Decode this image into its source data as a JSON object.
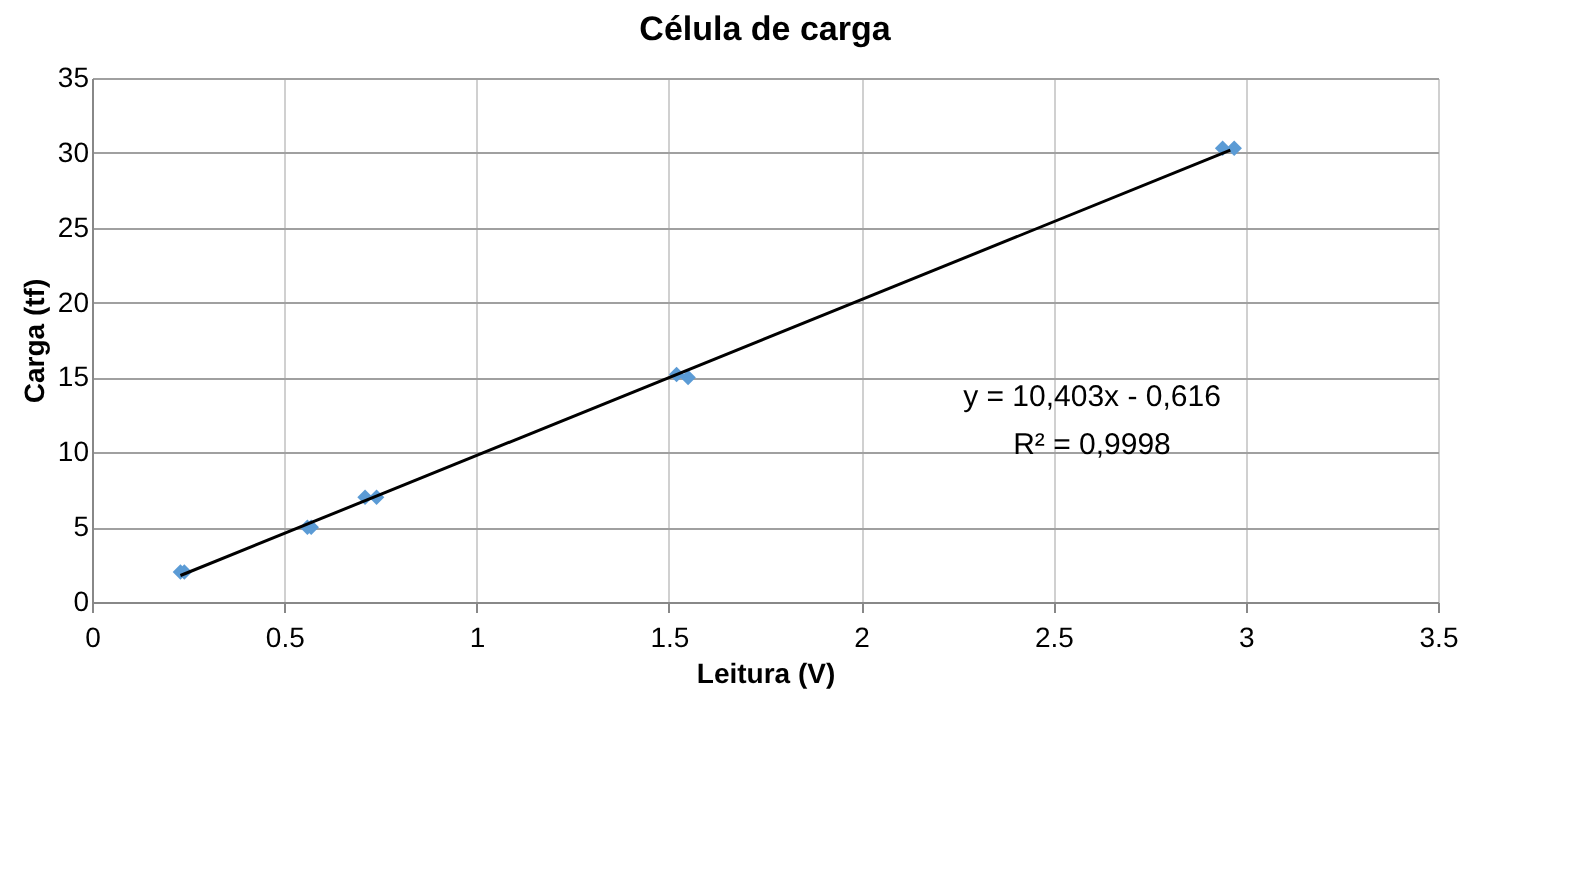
{
  "chart_data": {
    "type": "scatter",
    "title": "Célula de carga",
    "xlabel": "Leitura (V)",
    "ylabel": "Carga (tf)",
    "series": [
      {
        "color": "#5b9bd5",
        "x": [
          0.23,
          0.24,
          0.56,
          0.57,
          0.71,
          0.74,
          1.52,
          1.55,
          2.94,
          2.97
        ],
        "values": [
          2,
          2,
          5,
          5,
          7,
          7,
          15.2,
          15,
          30.3,
          30.3
        ],
        "marker": "diamond"
      },
      {
        "type": "line",
        "color": "#000000",
        "x": [
          0.23,
          2.96
        ],
        "values": [
          1.77,
          30.18
        ]
      }
    ],
    "annotations": [
      "y = 10,403x - 0,616",
      "R² = 0,9998"
    ],
    "xlim": [
      0,
      3.5
    ],
    "xticks": [
      0,
      0.5,
      1,
      1.5,
      2,
      2.5,
      3,
      3.5
    ],
    "ylim": [
      0,
      35
    ],
    "yticks": [
      0,
      5,
      10,
      15,
      20,
      25,
      30,
      35
    ],
    "grid": true,
    "legend": false
  }
}
